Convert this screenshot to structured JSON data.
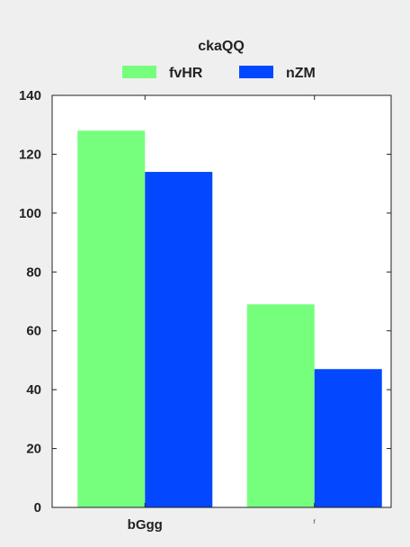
{
  "chart_data": {
    "type": "bar",
    "legend_title": "ckaQQ",
    "legend_placement": "top-center",
    "categories": [
      "bGgg",
      "r"
    ],
    "series": [
      {
        "name": "fvHR",
        "values": [
          128,
          69
        ],
        "color": "#75ff7d"
      },
      {
        "name": "nZM",
        "values": [
          114,
          47
        ],
        "color": "#0348ff"
      }
    ],
    "ylim": [
      0,
      140
    ],
    "yticks": [
      0,
      20,
      40,
      60,
      80,
      100,
      120,
      140
    ],
    "grid": false,
    "xlabel": "",
    "ylabel": ""
  }
}
